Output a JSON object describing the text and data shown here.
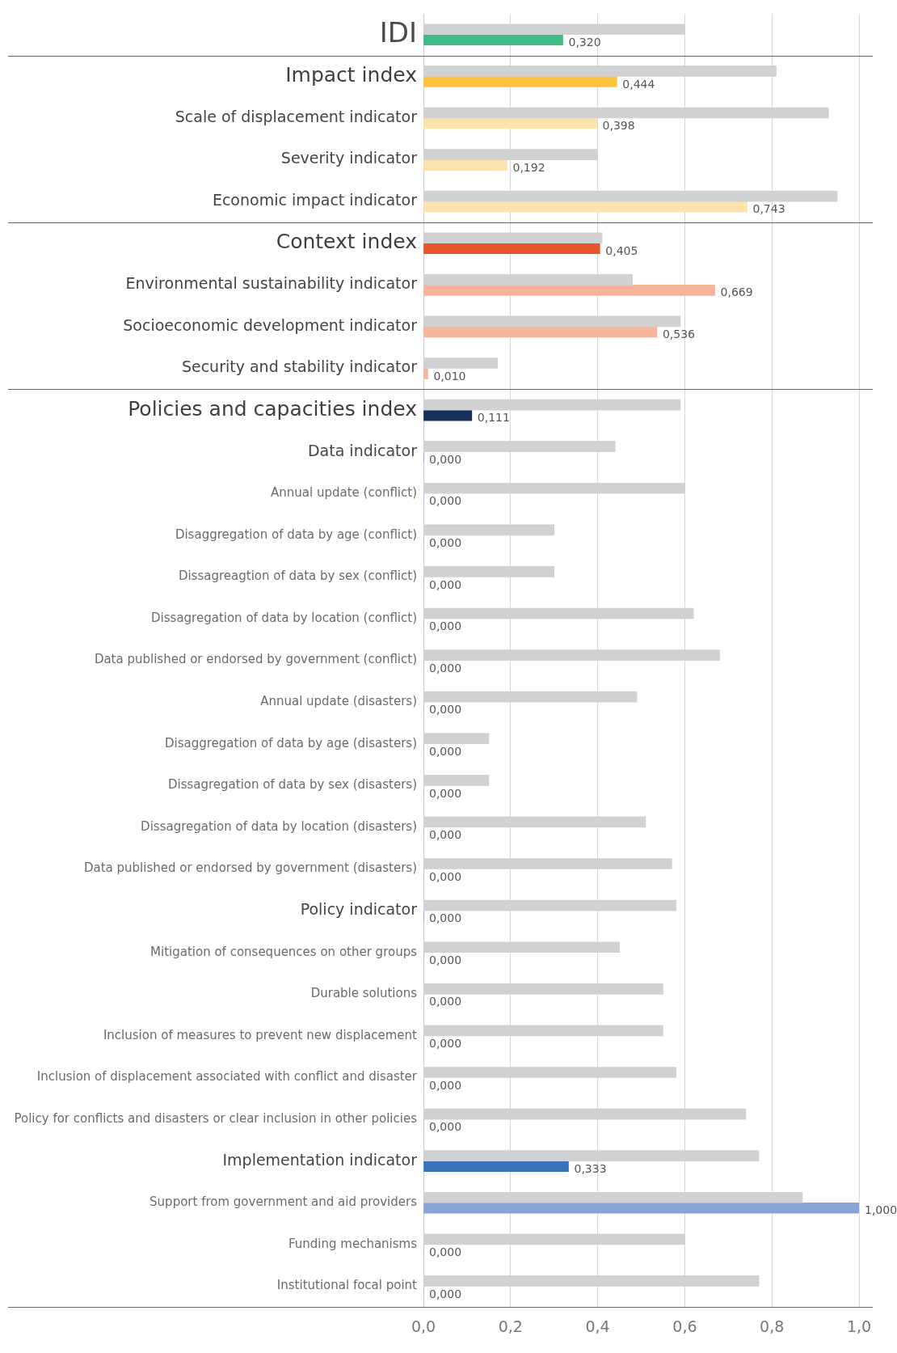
{
  "chart_data": {
    "type": "bar",
    "orientation": "horizontal",
    "grid": "x",
    "categories": [
      "IDI",
      "Impact index",
      "Scale of displacement indicator",
      "Severity indicator",
      "Economic impact indicator",
      "Context index",
      "Environmental sustainability indicator",
      "Socioeconomic development indicator",
      "Security and stability indicator",
      "Policies and capacities index",
      "Data indicator",
      "Annual update (conflict)",
      "Disaggregation of data by age (conflict)",
      "Dissagreagtion of data by sex (conflict)",
      "Dissagregation of data by location (conflict)",
      "Data published or endorsed by government (conflict)",
      "Annual update (disasters)",
      "Disaggregation of data by age (disasters)",
      "Dissagregation of data by sex (disasters)",
      "Dissagregation of data by location (disasters)",
      "Data published or endorsed by government (disasters)",
      "Policy indicator",
      "Mitigation of consequences on other groups",
      "Durable solutions",
      "Inclusion of measures to prevent new displacement",
      "Inclusion of displacement associated with conflict and disaster",
      "Policy for conflicts and disasters or clear inclusion in other policies",
      "Implementation indicator",
      "Support from government and aid providers",
      "Funding mechanisms",
      "Institutional focal point"
    ],
    "xlim": [
      0,
      1
    ],
    "xticks": [
      {
        "value": 0,
        "label": "0,0"
      },
      {
        "value": 0.2,
        "label": "0,2"
      },
      {
        "value": 0.4,
        "label": "0,4"
      },
      {
        "value": 0.6,
        "label": "0,6"
      },
      {
        "value": 0.8,
        "label": "0,8"
      },
      {
        "value": 1,
        "label": "1,0"
      }
    ],
    "series": [
      {
        "color": "#d0d1d3",
        "values": [
          0.6,
          0.81,
          0.93,
          0.4,
          0.95,
          0.41,
          0.48,
          0.59,
          0.17,
          0.59,
          0.44,
          0.6,
          0.3,
          0.3,
          0.62,
          0.68,
          0.49,
          0.15,
          0.15,
          0.51,
          0.57,
          0.58,
          0.45,
          0.55,
          0.55,
          0.58,
          0.74,
          0.77,
          0.87,
          0.6,
          0.77
        ]
      },
      {
        "colors": [
          "#3dbb85",
          "#fec340",
          "#fde3ad",
          "#fde3ad",
          "#fde3ad",
          "#e8552a",
          "#f6b59a",
          "#f6b59a",
          "#f6b59a",
          "#17305a",
          "#3a72b8",
          "#87a4d6",
          "#87a4d6",
          "#87a4d6",
          "#87a4d6",
          "#87a4d6",
          "#87a4d6",
          "#87a4d6",
          "#87a4d6",
          "#87a4d6",
          "#87a4d6",
          "#3a72b8",
          "#87a4d6",
          "#87a4d6",
          "#87a4d6",
          "#87a4d6",
          "#87a4d6",
          "#3a72b8",
          "#87a4d6",
          "#87a4d6",
          "#87a4d6"
        ],
        "values": [
          0.32,
          0.444,
          0.398,
          0.192,
          0.743,
          0.405,
          0.669,
          0.536,
          0.01,
          0.111,
          0,
          0,
          0,
          0,
          0,
          0,
          0,
          0,
          0,
          0,
          0,
          0,
          0,
          0,
          0,
          0,
          0,
          0.333,
          1,
          0,
          0
        ],
        "value_labels": [
          "0,320",
          "0,444",
          "0,398",
          "0,192",
          "0,743",
          "0,405",
          "0,669",
          "0,536",
          "0,010",
          "0,111",
          "0,000",
          "0,000",
          "0,000",
          "0,000",
          "0,000",
          "0,000",
          "0,000",
          "0,000",
          "0,000",
          "0,000",
          "0,000",
          "0,000",
          "0,000",
          "0,000",
          "0,000",
          "0,000",
          "0,000",
          "0,333",
          "1,000",
          "0,000",
          "0,000"
        ]
      }
    ]
  }
}
